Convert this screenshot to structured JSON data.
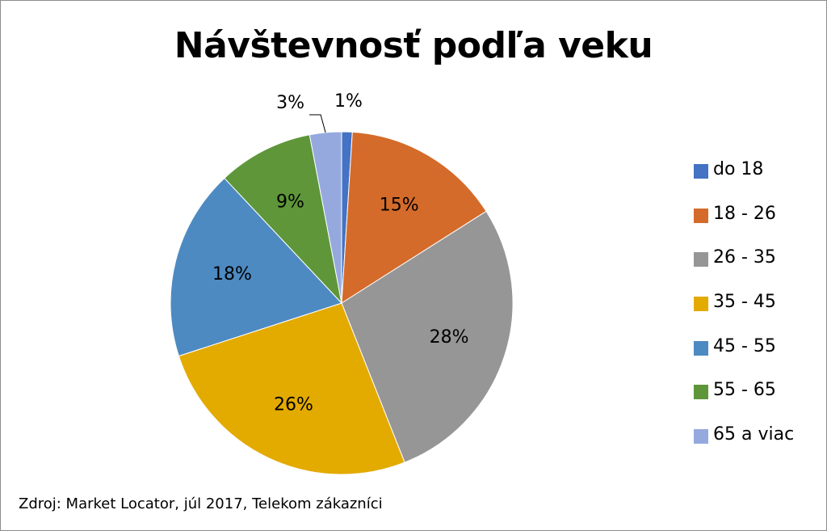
{
  "chart_data": {
    "type": "pie",
    "title": "Návštevnosť podľa veku",
    "categories": [
      "do 18",
      "18 - 26",
      "26 - 35",
      "35 - 45",
      "45 - 55",
      "55 - 65",
      "65 a viac"
    ],
    "values": [
      1,
      15,
      28,
      26,
      18,
      9,
      3
    ],
    "value_labels": [
      "1%",
      "15%",
      "28%",
      "26%",
      "18%",
      "9%",
      "3%"
    ],
    "colors": [
      "#4472C4",
      "#D46B2A",
      "#969696",
      "#E3AA00",
      "#4D8AC2",
      "#5E9639",
      "#95A9DF"
    ],
    "legend_position": "right",
    "source": "Zdroj: Market Locator, júl 2017, Telekom zákazníci"
  }
}
